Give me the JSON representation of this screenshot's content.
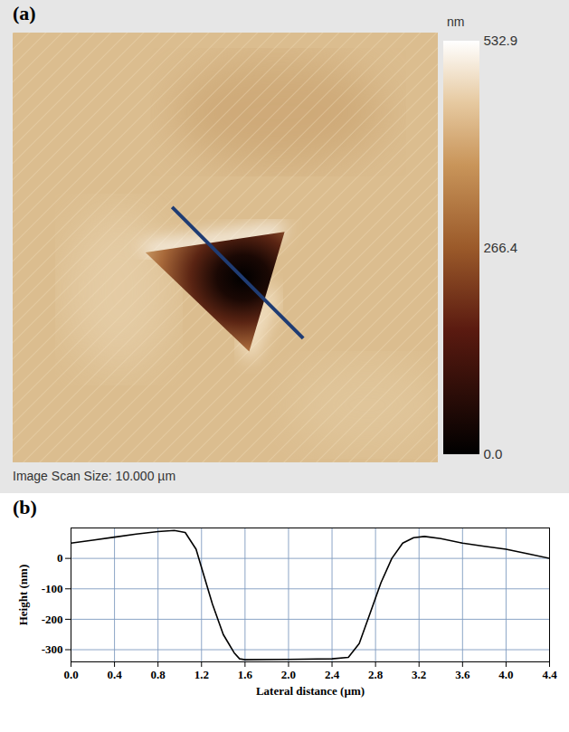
{
  "chart_data": [
    {
      "type": "image",
      "panel_label": "(a)",
      "caption": "Image Scan Size: 10.000 µm",
      "colorbar": {
        "label": "nm",
        "range": [
          0,
          532.9
        ],
        "ticks": [
          {
            "value": 0,
            "label": "0.0"
          },
          266.4,
          532.9
        ]
      }
    },
    {
      "type": "line",
      "panel_label": "(b)",
      "x_label": "Lateral distance (µm)",
      "y_label": "Height (nm)",
      "x": [
        0,
        0.2,
        0.4,
        0.6,
        0.8,
        0.95,
        1.05,
        1.15,
        1.2,
        1.3,
        1.4,
        1.5,
        1.55,
        1.6,
        2.0,
        2.4,
        2.55,
        2.65,
        2.75,
        2.85,
        2.95,
        3.05,
        3.15,
        3.25,
        3.4,
        3.6,
        3.8,
        4.0,
        4.2,
        4.4
      ],
      "values": [
        50,
        60,
        70,
        80,
        88,
        92,
        85,
        30,
        -30,
        -150,
        -250,
        -310,
        -330,
        -333,
        -332,
        -330,
        -325,
        -280,
        -180,
        -80,
        0,
        50,
        68,
        72,
        65,
        50,
        40,
        30,
        15,
        0
      ],
      "color": "#000000",
      "xlim": [
        0,
        4.4
      ],
      "xticks": [
        {
          "value": 0,
          "label": "0.0"
        },
        0.4,
        0.8,
        1.2,
        1.6,
        {
          "value": 2,
          "label": "2.0"
        },
        2.4,
        2.8,
        3.2,
        3.6,
        {
          "value": 4,
          "label": "4.0"
        },
        4.4
      ],
      "ylim": [
        -340,
        100
      ],
      "yticks": [
        -300,
        -200,
        -100,
        0
      ],
      "grid": true
    }
  ]
}
